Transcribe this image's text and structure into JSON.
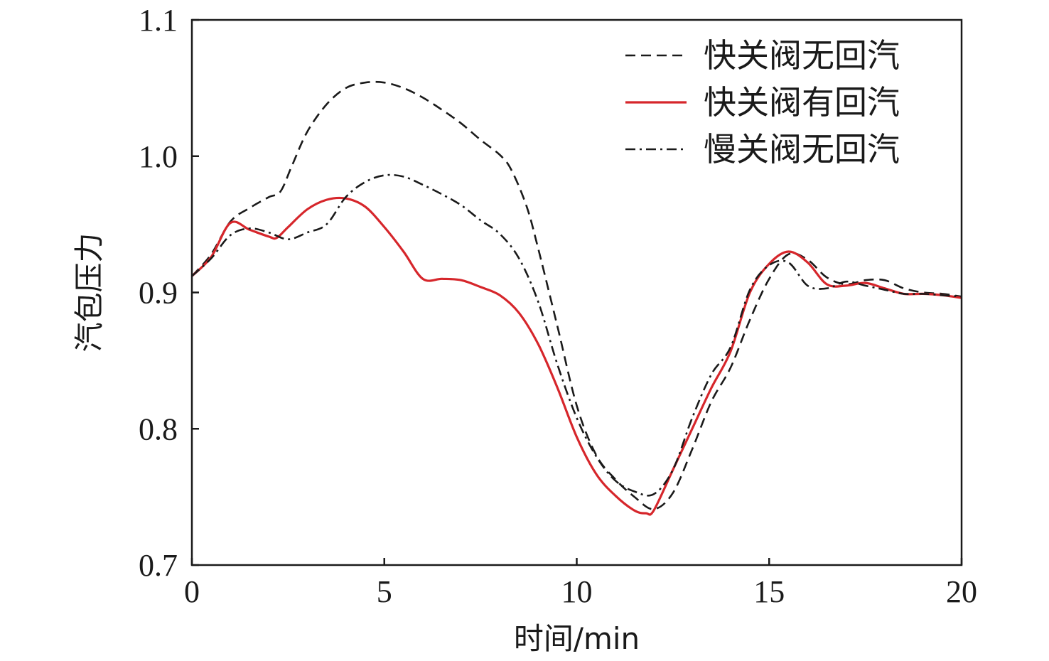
{
  "chart_data": {
    "type": "line",
    "title": "",
    "xlabel": "时间/min",
    "ylabel": "汽包压力",
    "xlim": [
      0,
      20
    ],
    "ylim": [
      0.7,
      1.1
    ],
    "x_ticks": [
      0,
      5,
      10,
      15,
      20
    ],
    "x_tick_labels": [
      "0",
      "5",
      "10",
      "15",
      "20"
    ],
    "y_ticks": [
      0.7,
      0.8,
      0.9,
      1.0,
      1.1
    ],
    "y_tick_labels": [
      "0.7",
      "0.8",
      "0.9",
      "1.0",
      "1.1"
    ],
    "grid": false,
    "legend_position": "top-right",
    "series": [
      {
        "name": "快关阀无回汽",
        "color": "#1a1a1a",
        "style": "dashed",
        "x": [
          0,
          0.5,
          1.0,
          1.5,
          2.0,
          2.3,
          2.6,
          3.0,
          3.5,
          4.0,
          4.5,
          5.0,
          5.5,
          6.0,
          6.5,
          7.0,
          7.5,
          8.0,
          8.3,
          8.7,
          9.0,
          9.5,
          10.0,
          10.5,
          11.0,
          11.5,
          12.0,
          12.5,
          13.0,
          13.5,
          14.0,
          14.5,
          15.0,
          15.5,
          16.0,
          16.5,
          17.0,
          17.5,
          18.0,
          18.5,
          19.0,
          19.5,
          20.0
        ],
        "y": [
          0.912,
          0.928,
          0.952,
          0.962,
          0.97,
          0.974,
          0.993,
          1.018,
          1.038,
          1.05,
          1.054,
          1.054,
          1.05,
          1.043,
          1.034,
          1.024,
          1.012,
          1.001,
          0.99,
          0.963,
          0.932,
          0.875,
          0.817,
          0.781,
          0.763,
          0.75,
          0.741,
          0.753,
          0.785,
          0.82,
          0.845,
          0.88,
          0.91,
          0.928,
          0.924,
          0.911,
          0.906,
          0.909,
          0.909,
          0.903,
          0.9,
          0.899,
          0.897
        ]
      },
      {
        "name": "快关阀有回汽",
        "color": "#d6262b",
        "style": "solid",
        "x": [
          0,
          0.5,
          1.0,
          1.5,
          2.0,
          2.2,
          2.5,
          3.0,
          3.5,
          4.0,
          4.5,
          5.0,
          5.5,
          6.0,
          6.5,
          7.0,
          7.5,
          8.0,
          8.5,
          9.0,
          9.5,
          10.0,
          10.5,
          11.0,
          11.5,
          11.8,
          12.0,
          12.5,
          13.0,
          13.5,
          14.0,
          14.5,
          15.0,
          15.5,
          16.0,
          16.5,
          17.0,
          17.5,
          18.0,
          18.5,
          19.0,
          19.5,
          20.0
        ],
        "y": [
          0.912,
          0.926,
          0.951,
          0.946,
          0.941,
          0.94,
          0.948,
          0.961,
          0.968,
          0.969,
          0.963,
          0.948,
          0.93,
          0.91,
          0.91,
          0.909,
          0.904,
          0.898,
          0.885,
          0.862,
          0.83,
          0.794,
          0.767,
          0.751,
          0.74,
          0.738,
          0.74,
          0.77,
          0.8,
          0.83,
          0.857,
          0.9,
          0.921,
          0.93,
          0.922,
          0.906,
          0.905,
          0.907,
          0.903,
          0.899,
          0.899,
          0.898,
          0.896
        ]
      },
      {
        "name": "慢关阀无回汽",
        "color": "#1a1a1a",
        "style": "dashdot",
        "x": [
          0,
          0.5,
          1.0,
          1.5,
          2.0,
          2.5,
          3.0,
          3.5,
          4.0,
          4.5,
          5.0,
          5.5,
          6.0,
          6.5,
          7.0,
          7.5,
          8.0,
          8.5,
          9.0,
          9.5,
          10.0,
          10.5,
          11.0,
          11.5,
          12.0,
          12.5,
          13.0,
          13.5,
          14.0,
          14.5,
          15.0,
          15.5,
          16.0,
          16.5,
          17.0,
          17.5,
          18.0,
          18.5,
          19.0,
          19.5,
          20.0
        ],
        "y": [
          0.912,
          0.925,
          0.942,
          0.947,
          0.944,
          0.939,
          0.944,
          0.95,
          0.97,
          0.981,
          0.986,
          0.985,
          0.979,
          0.972,
          0.964,
          0.953,
          0.943,
          0.925,
          0.893,
          0.847,
          0.808,
          0.78,
          0.762,
          0.754,
          0.752,
          0.77,
          0.808,
          0.84,
          0.86,
          0.902,
          0.92,
          0.922,
          0.905,
          0.903,
          0.908,
          0.905,
          0.902,
          0.899,
          0.899,
          0.898,
          0.897
        ]
      }
    ]
  }
}
